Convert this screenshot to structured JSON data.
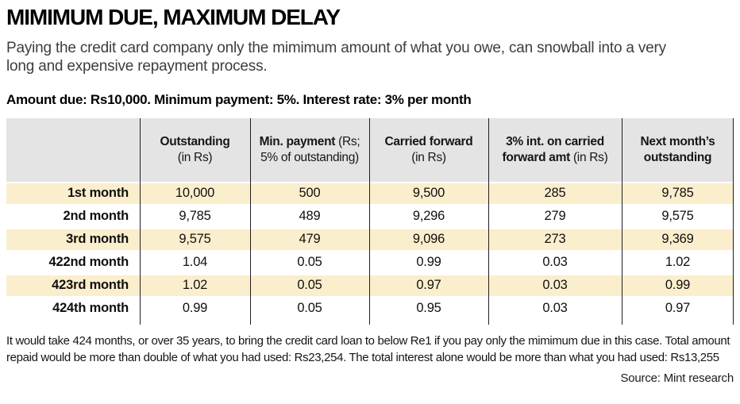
{
  "header": {
    "title": "MIMIMUM DUE, MAXIMUM DELAY",
    "subtitle": "Paying the credit card company only the mimimum amount of what you owe, can snowball into a very long and expensive repayment process.",
    "assumptions": "Amount due: Rs10,000. Minimum payment: 5%. Interest rate: 3% per month"
  },
  "table": {
    "headers": [
      [],
      [
        [
          {
            "t": "Outstanding",
            "b": 1
          }
        ],
        [
          {
            "t": "(in Rs)",
            "b": 0
          }
        ]
      ],
      [
        [
          {
            "t": "Min. payment",
            "b": 1
          },
          {
            "t": " (Rs;",
            "b": 0
          }
        ],
        [
          {
            "t": "5% of outstanding)",
            "b": 0
          }
        ]
      ],
      [
        [
          {
            "t": "Carried forward",
            "b": 1
          }
        ],
        [
          {
            "t": "(in Rs)",
            "b": 0
          }
        ]
      ],
      [
        [
          {
            "t": "3% int. on carried",
            "b": 1
          }
        ],
        [
          {
            "t": "forward amt",
            "b": 1
          },
          {
            "t": " (in Rs)",
            "b": 0
          }
        ]
      ],
      [
        [
          {
            "t": "Next month’s",
            "b": 1
          }
        ],
        [
          {
            "t": "outstanding",
            "b": 1
          }
        ]
      ]
    ],
    "rows": [
      {
        "label": "1st month",
        "cells": [
          "10,000",
          "500",
          "9,500",
          "285",
          "9,785"
        ]
      },
      {
        "label": "2nd month",
        "cells": [
          "9,785",
          "489",
          "9,296",
          "279",
          "9,575"
        ]
      },
      {
        "label": "3rd month",
        "cells": [
          "9,575",
          "479",
          "9,096",
          "273",
          "9,369"
        ]
      },
      {
        "label": "422nd month",
        "cells": [
          "1.04",
          "0.05",
          "0.99",
          "0.03",
          "1.02"
        ]
      },
      {
        "label": "423rd month",
        "cells": [
          "1.02",
          "0.05",
          "0.97",
          "0.03",
          "0.99"
        ]
      },
      {
        "label": "424th month",
        "cells": [
          "0.99",
          "0.05",
          "0.95",
          "0.03",
          "0.97"
        ]
      }
    ]
  },
  "footer": {
    "note": "It would take 424 months, or over 35 years, to bring the credit card loan to below Re1 if you pay only the mimimum due in this case. Total amount repaid would be more than double of what you had used: Rs23,254. The total interest alone would be more than what you had used: Rs13,255",
    "source": "Source: Mint research"
  },
  "colors": {
    "row_highlight": "#fbeecd",
    "header_band": "#e4e4e4",
    "grid_line": "#1f1f1f"
  },
  "chart_data": {
    "type": "table",
    "title": "MIMIMUM DUE, MAXIMUM DELAY",
    "subtitle": "Paying the credit card company only the mimimum amount of what you owe, can snowball into a very long and expensive repayment process.",
    "assumptions": "Amount due: Rs10,000. Minimum payment: 5%. Interest rate: 3% per month",
    "columns": [
      "",
      "Outstanding (in Rs)",
      "Min. payment (Rs; 5% of outstanding)",
      "Carried forward (in Rs)",
      "3% int. on carried forward amt (in Rs)",
      "Next month's outstanding"
    ],
    "rows": [
      [
        "1st month",
        "10,000",
        "500",
        "9,500",
        "285",
        "9,785"
      ],
      [
        "2nd month",
        "9,785",
        "489",
        "9,296",
        "279",
        "9,575"
      ],
      [
        "3rd month",
        "9,575",
        "479",
        "9,096",
        "273",
        "9,369"
      ],
      [
        "422nd month",
        "1.04",
        "0.05",
        "0.99",
        "0.03",
        "1.02"
      ],
      [
        "423rd month",
        "1.02",
        "0.05",
        "0.97",
        "0.03",
        "0.99"
      ],
      [
        "424th month",
        "0.99",
        "0.05",
        "0.95",
        "0.03",
        "0.97"
      ]
    ],
    "row_highlight_pattern": "1st, 3rd and 5th data rows shaded cream",
    "footnote": "It would take 424 months, or over 35 years, to bring the credit card loan to below Re1 if you pay only the mimimum due in this case. Total amount repaid would be more than double of what you had used: Rs23,254. The total interest alone would be more than what you had used: Rs13,255",
    "source": "Source: Mint research"
  }
}
